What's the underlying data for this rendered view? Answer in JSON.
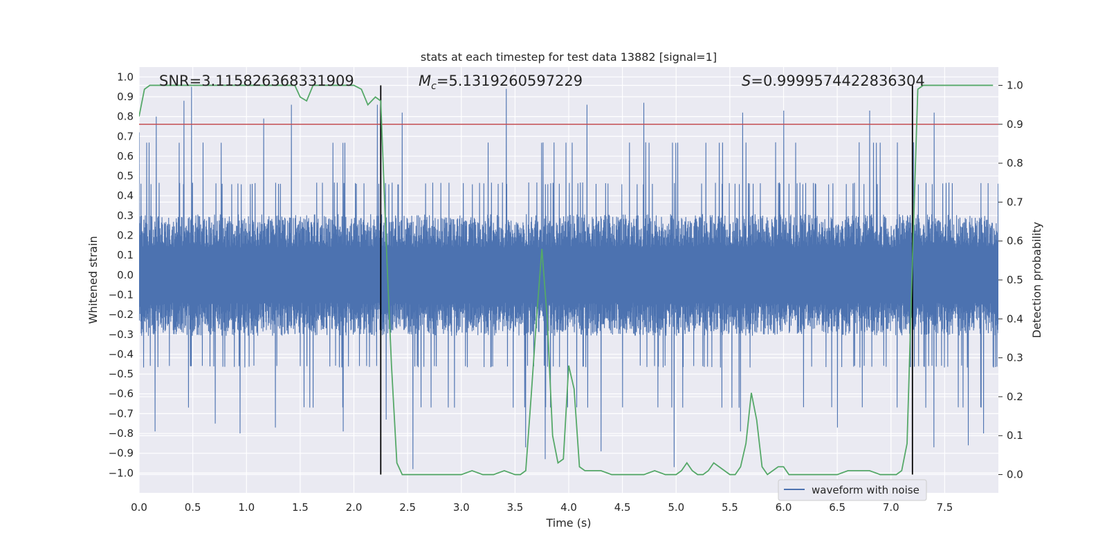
{
  "chart_data": {
    "type": "line",
    "title": "stats at each timestep for test data 13882 [signal=1]",
    "xlabel": "Time (s)",
    "ylabel": "Whitened strain",
    "y2label": "Detection probability",
    "xlim": [
      0.0,
      8.0
    ],
    "ylim": [
      -1.1,
      1.05
    ],
    "y2lim": [
      -0.047,
      1.047
    ],
    "xticks": [
      "0.0",
      "0.5",
      "1.0",
      "1.5",
      "2.0",
      "2.5",
      "3.0",
      "3.5",
      "4.0",
      "4.5",
      "5.0",
      "5.5",
      "6.0",
      "6.5",
      "7.0",
      "7.5"
    ],
    "yticks": [
      "1.0",
      "0.9",
      "0.8",
      "0.7",
      "0.6",
      "0.5",
      "0.4",
      "0.3",
      "0.2",
      "0.1",
      "0.0",
      "-0.1",
      "-0.2",
      "-0.3",
      "-0.4",
      "-0.5",
      "-0.6",
      "-0.7",
      "-0.8",
      "-0.9",
      "-1.0"
    ],
    "y2ticks": [
      "1.0",
      "0.9",
      "0.8",
      "0.7",
      "0.6",
      "0.5",
      "0.4",
      "0.3",
      "0.2",
      "0.1",
      "0.0"
    ],
    "annotations": {
      "snr": "SNR=3.115826368331909",
      "mc_symbol": "M",
      "mc_sub": "c",
      "mc_value": "=5.1319260597229",
      "s_symbol": "S",
      "s_value": "=0.9999574422836304"
    },
    "threshold": {
      "value": 0.9,
      "color": "#c44e52"
    },
    "vertical_markers": [
      2.25,
      7.2
    ],
    "series": [
      {
        "name": "waveform with noise",
        "color": "#4c72b0",
        "envelope_note": "dense noise trace, roughly within -0.4 to 0.4 with spikes to about -1.0 and 0.95",
        "peaks_high": [
          [
            0.0,
            0.72
          ],
          [
            0.16,
            0.8
          ],
          [
            0.42,
            0.88
          ],
          [
            0.49,
            0.95
          ],
          [
            1.16,
            0.79
          ],
          [
            1.42,
            0.86
          ],
          [
            2.22,
            0.86
          ],
          [
            2.45,
            0.82
          ],
          [
            3.42,
            0.94
          ],
          [
            4.17,
            0.86
          ],
          [
            4.7,
            0.87
          ],
          [
            5.62,
            0.82
          ],
          [
            6.0,
            0.83
          ],
          [
            6.8,
            0.83
          ],
          [
            7.4,
            0.82
          ]
        ],
        "peaks_low": [
          [
            0.15,
            -0.79
          ],
          [
            0.71,
            -0.75
          ],
          [
            0.94,
            -0.8
          ],
          [
            1.27,
            -0.77
          ],
          [
            1.9,
            -0.79
          ],
          [
            2.3,
            -0.73
          ],
          [
            2.55,
            -0.98
          ],
          [
            3.6,
            -0.87
          ],
          [
            3.78,
            -0.93
          ],
          [
            4.3,
            -0.89
          ],
          [
            4.98,
            -0.97
          ],
          [
            5.6,
            -0.79
          ],
          [
            6.5,
            -0.77
          ],
          [
            7.4,
            -0.87
          ],
          [
            7.72,
            -0.86
          ],
          [
            7.86,
            -0.8
          ]
        ]
      },
      {
        "name": "Detection probability",
        "color": "#55a868",
        "axis": "right",
        "x": [
          0.0,
          0.05,
          0.1,
          0.2,
          0.4,
          0.6,
          0.8,
          1.0,
          1.2,
          1.45,
          1.5,
          1.56,
          1.62,
          1.7,
          1.8,
          1.9,
          2.0,
          2.07,
          2.13,
          2.2,
          2.25,
          2.3,
          2.35,
          2.4,
          2.45,
          2.5,
          2.6,
          2.8,
          3.0,
          3.1,
          3.2,
          3.3,
          3.4,
          3.5,
          3.55,
          3.6,
          3.65,
          3.7,
          3.75,
          3.8,
          3.85,
          3.9,
          3.95,
          4.0,
          4.05,
          4.1,
          4.15,
          4.2,
          4.3,
          4.4,
          4.5,
          4.6,
          4.7,
          4.8,
          4.9,
          5.0,
          5.05,
          5.1,
          5.15,
          5.2,
          5.25,
          5.3,
          5.35,
          5.4,
          5.45,
          5.5,
          5.55,
          5.6,
          5.65,
          5.7,
          5.75,
          5.8,
          5.85,
          5.9,
          5.95,
          6.0,
          6.05,
          6.1,
          6.2,
          6.3,
          6.4,
          6.5,
          6.6,
          6.7,
          6.8,
          6.9,
          7.0,
          7.05,
          7.1,
          7.15,
          7.2,
          7.25,
          7.3,
          7.35,
          7.4,
          7.5,
          7.6,
          7.7,
          7.8,
          7.95
        ],
        "y": [
          0.92,
          0.99,
          1.0,
          1.0,
          1.0,
          1.0,
          1.0,
          1.0,
          1.0,
          1.0,
          0.97,
          0.96,
          1.0,
          1.0,
          1.0,
          1.0,
          1.0,
          0.99,
          0.95,
          0.97,
          0.96,
          0.6,
          0.28,
          0.03,
          0.0,
          0.0,
          0.0,
          0.0,
          0.0,
          0.01,
          0.0,
          0.0,
          0.01,
          0.0,
          0.0,
          0.01,
          0.2,
          0.4,
          0.58,
          0.4,
          0.1,
          0.03,
          0.04,
          0.28,
          0.22,
          0.02,
          0.01,
          0.01,
          0.01,
          0.0,
          0.0,
          0.0,
          0.0,
          0.01,
          0.0,
          0.0,
          0.01,
          0.03,
          0.01,
          0.0,
          0.0,
          0.01,
          0.03,
          0.02,
          0.01,
          0.0,
          0.0,
          0.02,
          0.08,
          0.21,
          0.14,
          0.02,
          0.0,
          0.01,
          0.02,
          0.02,
          0.0,
          0.0,
          0.0,
          0.0,
          0.0,
          0.0,
          0.01,
          0.01,
          0.01,
          0.0,
          0.0,
          0.0,
          0.01,
          0.08,
          0.55,
          0.99,
          1.0,
          1.0,
          1.0,
          1.0,
          1.0,
          1.0,
          1.0,
          1.0
        ]
      }
    ],
    "legend": {
      "label": "waveform with noise",
      "position": "lower-right"
    }
  }
}
